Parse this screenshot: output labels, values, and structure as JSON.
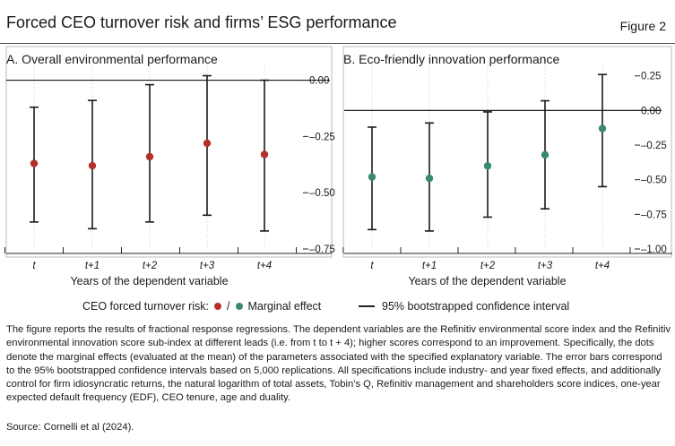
{
  "header": {
    "title": "Forced CEO turnover risk and firms’ ESG performance",
    "figure_label": "Figure 2"
  },
  "colors": {
    "series_a": "#b5302a",
    "series_b": "#3a8a6e",
    "whisker": "#1a1a1a",
    "zero_line": "#1a1a1a"
  },
  "chart_data": [
    {
      "type": "scatter",
      "title": "A. Overall environmental performance",
      "xlabel": "Years of the dependent variable",
      "categories": [
        "t",
        "t+1",
        "t+2",
        "t+3",
        "t+4"
      ],
      "values": [
        -0.37,
        -0.38,
        -0.34,
        -0.28,
        -0.33
      ],
      "ci_low": [
        -0.63,
        -0.66,
        -0.63,
        -0.6,
        -0.67
      ],
      "ci_high": [
        -0.12,
        -0.09,
        -0.02,
        0.02,
        0.0
      ],
      "ylim": [
        -0.75,
        0.05
      ],
      "yticks": [
        0.0,
        -0.25,
        -0.5,
        -0.75
      ],
      "ytick_labels": [
        "0.00",
        "–0.25",
        "–0.50",
        "–0.75"
      ]
    },
    {
      "type": "scatter",
      "title": "B. Eco-friendly innovation performance",
      "xlabel": "Years of the dependent variable",
      "categories": [
        "t",
        "t+1",
        "t+2",
        "t+3",
        "t+4"
      ],
      "values": [
        -0.48,
        -0.49,
        -0.4,
        -0.32,
        -0.13
      ],
      "ci_low": [
        -0.86,
        -0.87,
        -0.77,
        -0.71,
        -0.55
      ],
      "ci_high": [
        -0.12,
        -0.09,
        -0.01,
        0.07,
        0.26
      ],
      "ylim": [
        -1.0,
        0.3
      ],
      "yticks": [
        0.25,
        0.0,
        -0.25,
        -0.5,
        -0.75,
        -1.0
      ],
      "ytick_labels": [
        "0.25",
        "0.00",
        "–0.25",
        "–0.50",
        "–0.75",
        "–1.00"
      ]
    }
  ],
  "legend": {
    "label": "CEO forced turnover risk:",
    "separator": "/",
    "marginal": "Marginal effect",
    "ci": "95% bootstrapped confidence interval"
  },
  "note": "The figure reports the results of fractional response regressions. The dependent variables are the Refinitiv environmental score index and the Refinitiv environmental innovation score sub-index at different leads (i.e. from t to t + 4); higher scores correspond to an improvement. Specifically, the dots denote the marginal effects (evaluated at the mean) of the parameters associated with the specified explanatory variable. The error bars correspond to the 95% bootstrapped confidence intervals based on 5,000 replications. All specifications include industry- and year fixed effects, and additionally control for firm idiosyncratic returns, the natural logarithm of total assets, Tobin’s Q, Refinitiv management and shareholders score indices, one-year expected default frequency (EDF), CEO tenure, age and duality.",
  "source": "Source: Cornelli et al (2024)."
}
